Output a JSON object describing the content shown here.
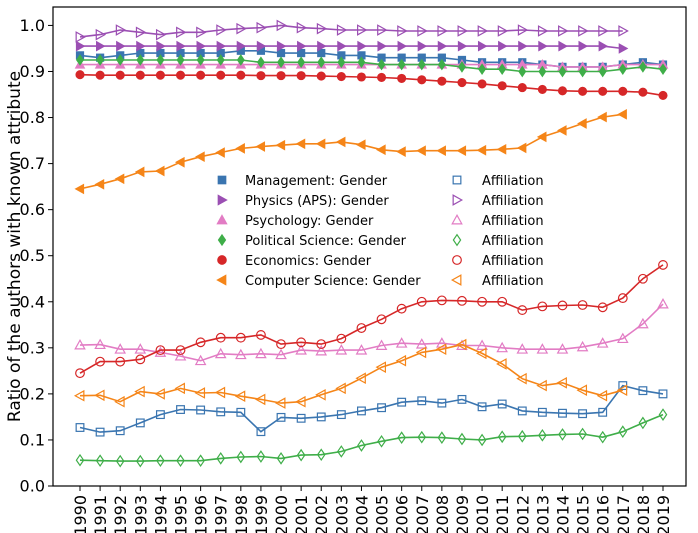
{
  "chart_data": {
    "type": "line",
    "ylabel": "Ratio of the authors with known attribute",
    "xlabel": "",
    "title": "",
    "ylim": [
      0.0,
      1.04
    ],
    "yticks": [
      "0.0",
      "0.1",
      "0.2",
      "0.3",
      "0.4",
      "0.5",
      "0.6",
      "0.7",
      "0.8",
      "0.9",
      "1.0"
    ],
    "categories": [
      "1990",
      "1991",
      "1992",
      "1993",
      "1994",
      "1995",
      "1996",
      "1997",
      "1998",
      "1999",
      "2000",
      "2001",
      "2002",
      "2003",
      "2004",
      "2005",
      "2006",
      "2007",
      "2008",
      "2009",
      "2010",
      "2011",
      "2012",
      "2013",
      "2014",
      "2015",
      "2016",
      "2017",
      "2018",
      "2019"
    ],
    "grid": false,
    "legend_position": "center",
    "series": [
      {
        "name": "Management: Gender",
        "color": "#3a75b0",
        "marker": "square",
        "filled": true,
        "values": [
          0.935,
          0.93,
          0.935,
          0.94,
          0.94,
          0.94,
          0.94,
          0.94,
          0.945,
          0.945,
          0.94,
          0.94,
          0.94,
          0.935,
          0.935,
          0.93,
          0.93,
          0.93,
          0.93,
          0.925,
          0.92,
          0.92,
          0.92,
          0.915,
          0.91,
          0.91,
          0.91,
          0.915,
          0.92,
          0.915
        ]
      },
      {
        "name": "Physics (APS): Gender",
        "color": "#9b4fb3",
        "marker": "triangle-right",
        "filled": true,
        "values": [
          0.955,
          0.955,
          0.955,
          0.955,
          0.955,
          0.955,
          0.955,
          0.955,
          0.955,
          0.955,
          0.955,
          0.955,
          0.955,
          0.955,
          0.955,
          0.955,
          0.955,
          0.955,
          0.955,
          0.955,
          0.955,
          0.955,
          0.955,
          0.955,
          0.955,
          0.955,
          0.955,
          0.95,
          null,
          null
        ]
      },
      {
        "name": "Psychology: Gender",
        "color": "#e27cc4",
        "marker": "triangle-up",
        "filled": true,
        "values": [
          0.915,
          0.915,
          0.915,
          0.915,
          0.915,
          0.915,
          0.915,
          0.915,
          0.915,
          0.915,
          0.915,
          0.915,
          0.915,
          0.915,
          0.915,
          0.915,
          0.915,
          0.915,
          0.915,
          0.915,
          0.915,
          0.915,
          0.915,
          0.915,
          0.91,
          0.91,
          0.91,
          0.915,
          0.915,
          0.915
        ]
      },
      {
        "name": "Political Science: Gender",
        "color": "#3fae49",
        "marker": "diamond",
        "filled": true,
        "values": [
          0.925,
          0.925,
          0.925,
          0.925,
          0.925,
          0.925,
          0.925,
          0.925,
          0.925,
          0.92,
          0.92,
          0.92,
          0.92,
          0.92,
          0.92,
          0.915,
          0.915,
          0.915,
          0.915,
          0.91,
          0.905,
          0.905,
          0.9,
          0.9,
          0.9,
          0.9,
          0.9,
          0.905,
          0.91,
          0.905
        ]
      },
      {
        "name": "Economics: Gender",
        "color": "#d62728",
        "marker": "circle",
        "filled": true,
        "values": [
          0.893,
          0.892,
          0.892,
          0.892,
          0.892,
          0.892,
          0.892,
          0.892,
          0.892,
          0.891,
          0.891,
          0.891,
          0.89,
          0.889,
          0.888,
          0.887,
          0.885,
          0.882,
          0.879,
          0.876,
          0.873,
          0.869,
          0.865,
          0.861,
          0.858,
          0.857,
          0.857,
          0.857,
          0.855,
          0.848
        ]
      },
      {
        "name": "Computer Science: Gender",
        "color": "#f58518",
        "marker": "triangle-left",
        "filled": true,
        "values": [
          0.645,
          0.655,
          0.667,
          0.682,
          0.684,
          0.703,
          0.715,
          0.724,
          0.733,
          0.737,
          0.74,
          0.743,
          0.743,
          0.747,
          0.741,
          0.73,
          0.726,
          0.728,
          0.728,
          0.728,
          0.729,
          0.731,
          0.734,
          0.758,
          0.772,
          0.787,
          0.801,
          0.807,
          null,
          null
        ]
      },
      {
        "name": "Affiliation",
        "color": "#3a75b0",
        "marker": "square",
        "filled": false,
        "values": [
          0.127,
          0.117,
          0.12,
          0.137,
          0.155,
          0.166,
          0.165,
          0.161,
          0.16,
          0.118,
          0.149,
          0.147,
          0.15,
          0.155,
          0.163,
          0.17,
          0.182,
          0.185,
          0.18,
          0.188,
          0.172,
          0.178,
          0.163,
          0.16,
          0.158,
          0.157,
          0.16,
          0.218,
          0.207,
          0.2
        ]
      },
      {
        "name": "Affiliation",
        "color": "#9b4fb3",
        "marker": "triangle-right",
        "filled": false,
        "values": [
          0.975,
          0.98,
          0.99,
          0.985,
          0.98,
          0.985,
          0.985,
          0.99,
          0.993,
          0.995,
          1.0,
          0.995,
          0.993,
          0.99,
          0.99,
          0.99,
          0.988,
          0.988,
          0.988,
          0.988,
          0.988,
          0.988,
          0.99,
          0.988,
          0.988,
          0.988,
          0.988,
          0.988,
          null,
          null
        ]
      },
      {
        "name": "Affiliation",
        "color": "#e27cc4",
        "marker": "triangle-up",
        "filled": false,
        "values": [
          0.306,
          0.307,
          0.297,
          0.297,
          0.29,
          0.282,
          0.272,
          0.287,
          0.285,
          0.287,
          0.285,
          0.295,
          0.293,
          0.295,
          0.295,
          0.305,
          0.31,
          0.308,
          0.31,
          0.305,
          0.305,
          0.3,
          0.297,
          0.297,
          0.297,
          0.302,
          0.31,
          0.32,
          0.352,
          0.395
        ]
      },
      {
        "name": "Affiliation",
        "color": "#3fae49",
        "marker": "diamond",
        "filled": false,
        "values": [
          0.056,
          0.055,
          0.054,
          0.054,
          0.055,
          0.055,
          0.055,
          0.06,
          0.063,
          0.064,
          0.06,
          0.067,
          0.068,
          0.075,
          0.088,
          0.097,
          0.105,
          0.106,
          0.105,
          0.102,
          0.1,
          0.107,
          0.108,
          0.11,
          0.112,
          0.113,
          0.106,
          0.118,
          0.137,
          0.155
        ]
      },
      {
        "name": "Affiliation",
        "color": "#d62728",
        "marker": "circle",
        "filled": false,
        "values": [
          0.245,
          0.27,
          0.27,
          0.275,
          0.295,
          0.295,
          0.312,
          0.322,
          0.322,
          0.328,
          0.308,
          0.312,
          0.308,
          0.32,
          0.343,
          0.362,
          0.385,
          0.4,
          0.403,
          0.402,
          0.4,
          0.4,
          0.382,
          0.39,
          0.392,
          0.393,
          0.388,
          0.408,
          0.45,
          0.48
        ]
      },
      {
        "name": "Affiliation",
        "color": "#f58518",
        "marker": "triangle-left",
        "filled": false,
        "values": [
          0.196,
          0.197,
          0.183,
          0.205,
          0.2,
          0.212,
          0.202,
          0.203,
          0.195,
          0.188,
          0.18,
          0.183,
          0.198,
          0.212,
          0.234,
          0.258,
          0.272,
          0.29,
          0.297,
          0.307,
          0.288,
          0.265,
          0.233,
          0.218,
          0.224,
          0.208,
          0.196,
          0.208,
          null,
          null
        ]
      }
    ]
  }
}
